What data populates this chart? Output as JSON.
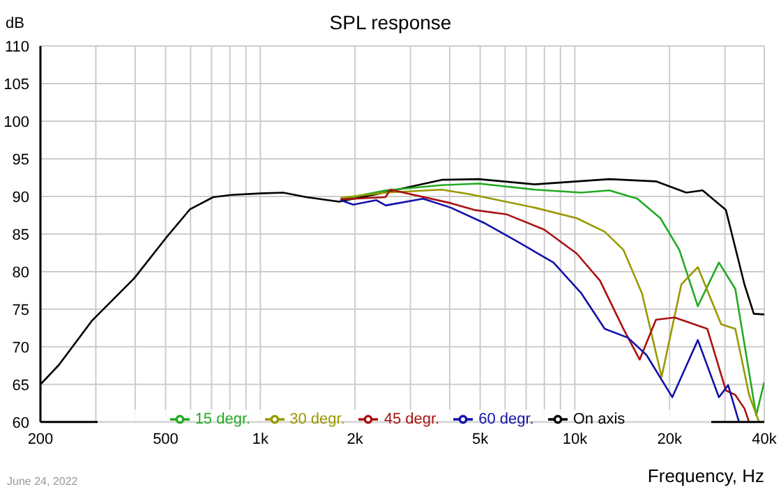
{
  "chart_data": {
    "type": "line",
    "title": "SPL response",
    "ylabel": "dB",
    "xlabel": "Frequency, Hz",
    "annotations": [
      "June 24, 2022"
    ],
    "xlim": [
      200,
      40000
    ],
    "ylim": [
      60,
      110
    ],
    "xticks": [
      {
        "value": 200,
        "label": "200"
      },
      {
        "value": 300,
        "label": null
      },
      {
        "value": 400,
        "label": null
      },
      {
        "value": 500,
        "label": "500"
      },
      {
        "value": 600,
        "label": null
      },
      {
        "value": 700,
        "label": null
      },
      {
        "value": 800,
        "label": null
      },
      {
        "value": 900,
        "label": null
      },
      {
        "value": 1000,
        "label": "1k"
      },
      {
        "value": 2000,
        "label": "2k"
      },
      {
        "value": 3000,
        "label": null
      },
      {
        "value": 4000,
        "label": null
      },
      {
        "value": 5000,
        "label": "5k"
      },
      {
        "value": 6000,
        "label": null
      },
      {
        "value": 7000,
        "label": null
      },
      {
        "value": 8000,
        "label": null
      },
      {
        "value": 9000,
        "label": null
      },
      {
        "value": 10000,
        "label": "10k"
      },
      {
        "value": 20000,
        "label": "20k"
      },
      {
        "value": 30000,
        "label": null
      },
      {
        "value": 40000,
        "label": "40k"
      }
    ],
    "yticks": [
      60,
      65,
      70,
      75,
      80,
      85,
      90,
      95,
      100,
      105,
      110
    ],
    "log": "x",
    "grid": true,
    "legend": "bottom",
    "marker": "none",
    "line_style": "solid",
    "series": [
      {
        "name": "On axis",
        "color": "#000000",
        "x": [
          200,
          229,
          292,
          397,
          504,
          598,
          708,
          812,
          1000,
          1182,
          1402,
          1779,
          2339,
          3770,
          4950,
          7460,
          12870,
          18100,
          22600,
          25470,
          30200,
          34600,
          37050,
          40000
        ],
        "values": [
          65.0,
          67.6,
          73.5,
          79.1,
          84.6,
          88.3,
          89.9,
          90.2,
          90.4,
          90.5,
          89.9,
          89.3,
          90.3,
          92.2,
          92.3,
          91.6,
          92.3,
          92.0,
          90.5,
          90.8,
          88.2,
          78.3,
          74.4,
          74.3
        ]
      },
      {
        "name": "15 degr.",
        "color": "#22aa22",
        "x": [
          1800,
          2504,
          3770,
          4950,
          7460,
          10490,
          12870,
          15800,
          18700,
          21480,
          24600,
          28700,
          32360,
          37700,
          40000
        ],
        "values": [
          89.6,
          90.8,
          91.5,
          91.7,
          90.9,
          90.5,
          90.8,
          89.7,
          87.1,
          82.9,
          75.4,
          81.2,
          77.7,
          60.9,
          65.3
        ]
      },
      {
        "name": "30 degr.",
        "color": "#999900",
        "x": [
          1800,
          2500,
          3770,
          4630,
          7460,
          10140,
          12440,
          14260,
          16350,
          18870,
          21800,
          24600,
          29180,
          32360,
          35800,
          38500
        ],
        "values": [
          89.8,
          90.5,
          90.9,
          90.3,
          88.5,
          87.1,
          85.3,
          82.9,
          77.1,
          66.0,
          78.3,
          80.6,
          73.0,
          72.4,
          63.6,
          60.0
        ]
      },
      {
        "name": "45 degr.",
        "color": "#aa1111",
        "x": [
          1800,
          2500,
          2590,
          4035,
          4786,
          6080,
          7980,
          10140,
          12020,
          14260,
          16070,
          18100,
          20750,
          26360,
          30200,
          32360,
          34600,
          35800
        ],
        "values": [
          89.6,
          89.9,
          90.9,
          89.1,
          88.2,
          87.6,
          85.6,
          82.4,
          78.8,
          72.4,
          68.3,
          73.6,
          73.9,
          72.4,
          64.2,
          63.6,
          61.8,
          60.0
        ]
      },
      {
        "name": "60 degr.",
        "color": "#1111aa",
        "x": [
          1800,
          1972,
          2339,
          2504,
          3290,
          4035,
          5130,
          6500,
          8550,
          10490,
          12440,
          14760,
          16900,
          20400,
          24600,
          28700,
          30700,
          33250
        ],
        "values": [
          89.5,
          88.9,
          89.5,
          88.8,
          89.7,
          88.5,
          86.5,
          84.1,
          81.2,
          77.1,
          72.4,
          71.2,
          68.9,
          63.3,
          70.9,
          63.3,
          64.9,
          60.0
        ]
      }
    ]
  }
}
